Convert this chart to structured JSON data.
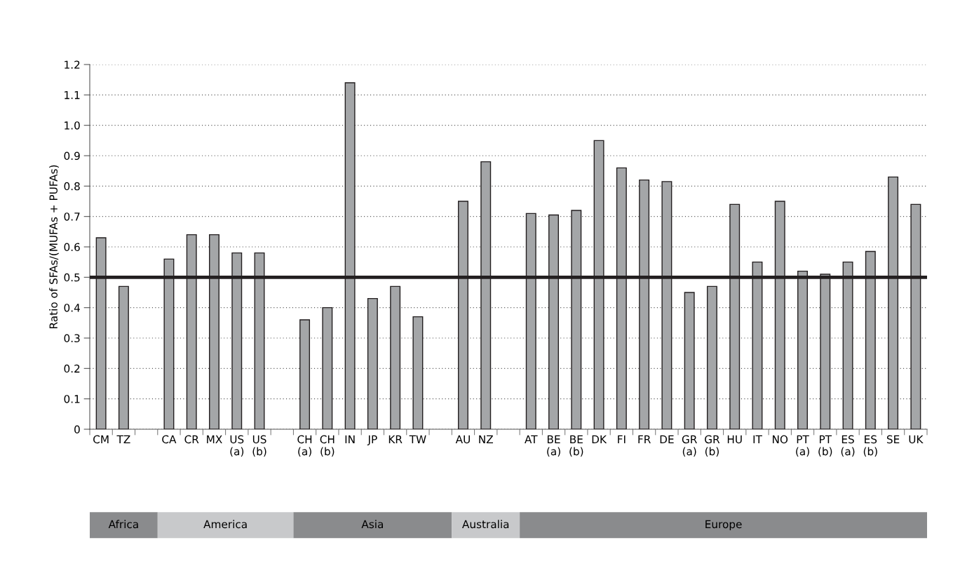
{
  "chart_data": {
    "type": "bar",
    "ylabel": "Ratio of SFAs/(MUFAs + PUFAs)",
    "categories": [
      "CM",
      "TZ",
      null,
      "CA",
      "CR",
      "MX",
      "US\n(a)",
      "US\n(b)",
      null,
      "CH\n(a)",
      "CH\n(b)",
      "IN",
      "JP",
      "KR",
      "TW",
      null,
      "AU",
      "NZ",
      null,
      "AT",
      "BE\n(a)",
      "BE\n(b)",
      "DK",
      "FI",
      "FR",
      "DE",
      "GR\n(a)",
      "GR\n(b)",
      "HU",
      "IT",
      "NO",
      "PT\n(a)",
      "PT\n(b)",
      "ES\n(a)",
      "ES\n(b)",
      "SE",
      "UK"
    ],
    "series": [
      {
        "color": "#a4a6a8",
        "values": [
          0.63,
          0.47,
          null,
          0.56,
          0.64,
          0.64,
          0.58,
          0.58,
          null,
          0.36,
          0.4,
          1.14,
          0.43,
          0.47,
          0.37,
          null,
          0.75,
          0.88,
          null,
          0.71,
          0.705,
          0.72,
          0.95,
          0.86,
          0.82,
          0.815,
          0.45,
          0.47,
          0.74,
          0.55,
          0.75,
          0.52,
          0.51,
          0.55,
          0.585,
          0.83,
          0.74
        ]
      }
    ],
    "ylim": [
      0,
      1.2
    ],
    "yticks": [
      0,
      0.1,
      0.2,
      0.3,
      0.4,
      0.5,
      0.6,
      0.7,
      0.8,
      0.9,
      {
        "value": 1.0,
        "label": "1.0"
      },
      1.1,
      1.2
    ],
    "grid": "y",
    "ref_lines": [
      {
        "axis": "y",
        "value": 0.5,
        "color": "#231f20"
      }
    ],
    "annotations": [
      "Africa",
      "America",
      "Asia",
      "Australia",
      "Europe"
    ]
  }
}
